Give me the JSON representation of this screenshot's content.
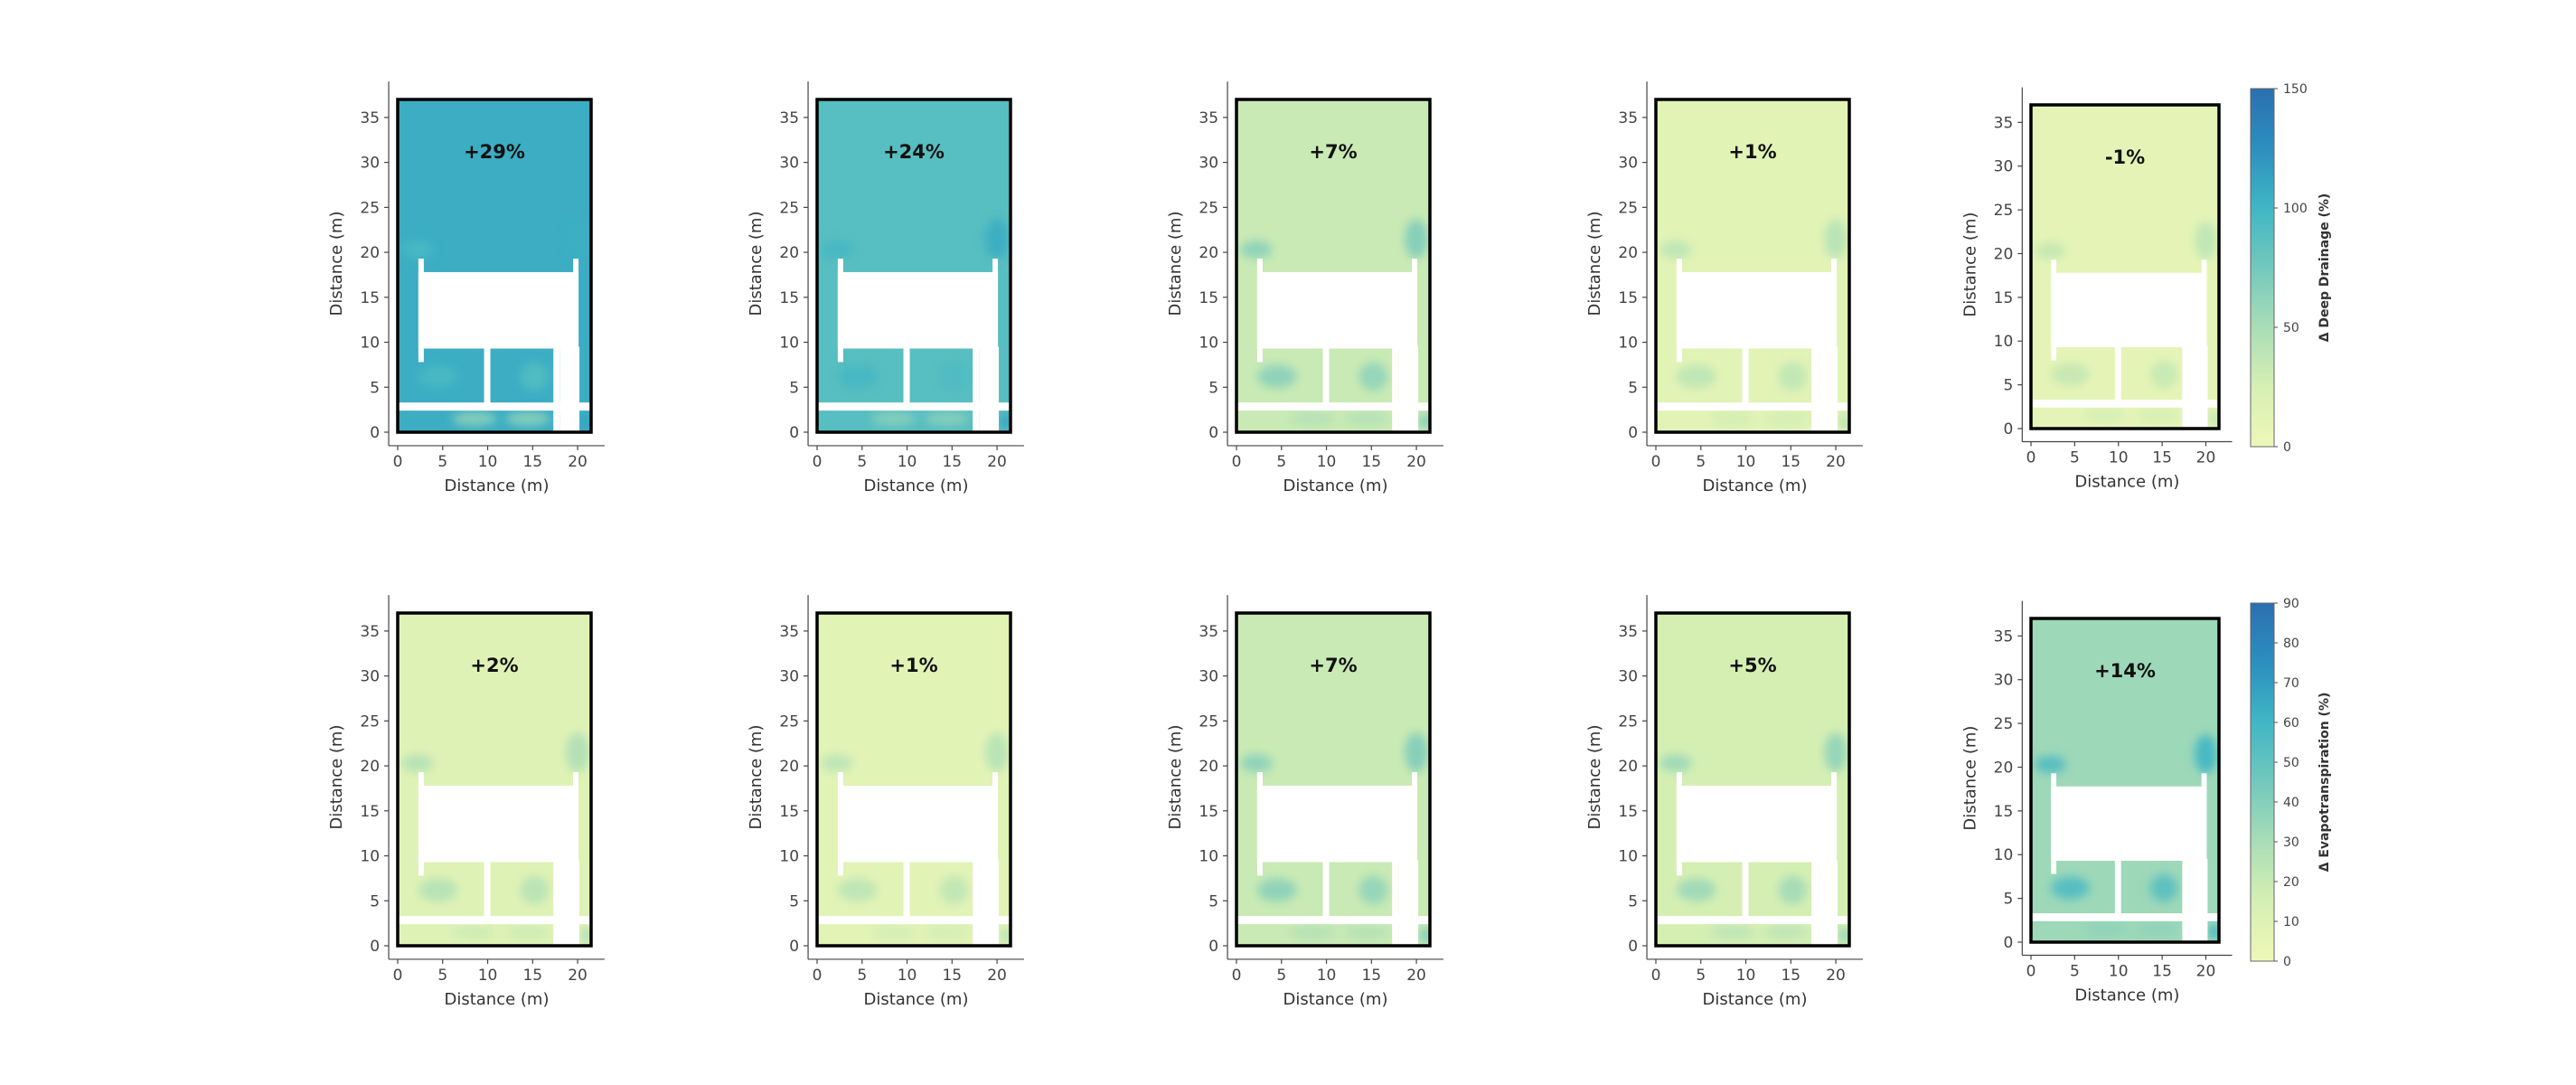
{
  "chart_data": {
    "type": "heatmap",
    "layout": "2 rows x 5 panels",
    "xlabel": "Distance (m)",
    "ylabel": "Distance (m)",
    "xticks": [
      0,
      5,
      10,
      15,
      20
    ],
    "yticks": [
      0,
      5,
      10,
      15,
      20,
      25,
      30,
      35
    ],
    "xlim": [
      -1,
      23
    ],
    "ylim": [
      -1.5,
      39
    ],
    "domain": {
      "width_m": 21.5,
      "height_m": 37
    },
    "rows": [
      {
        "variable": "Δ Deep Drainage (%)",
        "colorbar": {
          "label": "Δ Deep Drainage (%)",
          "min": 0,
          "max": 150,
          "ticks": [
            0,
            50,
            100,
            150
          ]
        },
        "panels": [
          {
            "label": "+29%",
            "value": 29
          },
          {
            "label": "+24%",
            "value": 24
          },
          {
            "label": "+7%",
            "value": 7
          },
          {
            "label": "+1%",
            "value": 1
          },
          {
            "label": "-1%",
            "value": -1
          }
        ]
      },
      {
        "variable": "Δ Evapotranspiration (%)",
        "colorbar": {
          "label": "Δ Evapotranspiration (%)",
          "min": 0,
          "max": 90,
          "ticks": [
            0,
            10,
            20,
            30,
            40,
            50,
            60,
            70,
            80,
            90
          ]
        },
        "panels": [
          {
            "label": "+2%",
            "value": 2
          },
          {
            "label": "+1%",
            "value": 1
          },
          {
            "label": "+7%",
            "value": 7
          },
          {
            "label": "+5%",
            "value": 5
          },
          {
            "label": "+14%",
            "value": 14
          }
        ]
      }
    ],
    "colormap": [
      "#eef7b8",
      "#d6efb3",
      "#a9ddb7",
      "#73c8bd",
      "#41b6c4",
      "#2c8fbf",
      "#2c6fb0"
    ]
  }
}
